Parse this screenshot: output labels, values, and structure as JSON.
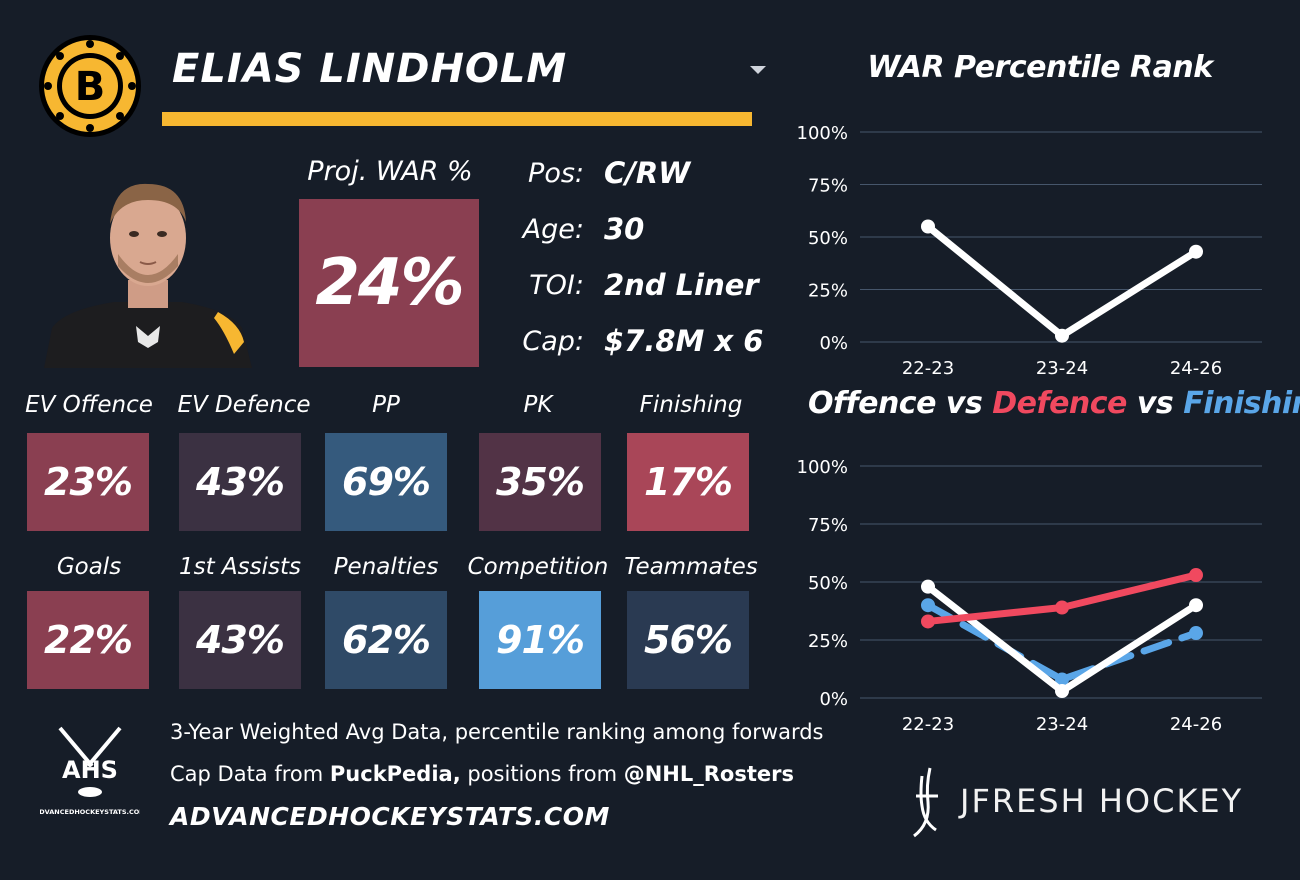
{
  "header": {
    "player_name": "ELIAS LINDHOLM",
    "team_logo_icon": "bruins-logo-icon",
    "accent": "#f7b731"
  },
  "proj_war": {
    "label": "Proj. WAR %",
    "value": "24%",
    "color": "#8a3f51"
  },
  "info": [
    {
      "label": "Pos:",
      "value": "C/RW"
    },
    {
      "label": "Age:",
      "value": "30"
    },
    {
      "label": "TOI:",
      "value": "2nd Liner"
    },
    {
      "label": "Cap:",
      "value": "$7.8M x 6"
    }
  ],
  "stats": [
    {
      "label": "EV Offence",
      "value": "23%",
      "color": "#8a3f51"
    },
    {
      "label": "EV Defence",
      "value": "43%",
      "color": "#3b3142"
    },
    {
      "label": "PP",
      "value": "69%",
      "color": "#355a7d"
    },
    {
      "label": "PK",
      "value": "35%",
      "color": "#523346"
    },
    {
      "label": "Finishing",
      "value": "17%",
      "color": "#a94658"
    },
    {
      "label": "Goals",
      "value": "22%",
      "color": "#8a3f51"
    },
    {
      "label": "1st Assists",
      "value": "43%",
      "color": "#3b3142"
    },
    {
      "label": "Penalties",
      "value": "62%",
      "color": "#2f4a67"
    },
    {
      "label": "Competition",
      "value": "91%",
      "color": "#569ed9"
    },
    {
      "label": "Teammates",
      "value": "56%",
      "color": "#2a3a52"
    }
  ],
  "chart_data": [
    {
      "type": "line",
      "title": "WAR Percentile Rank",
      "categories": [
        "22-23",
        "23-24",
        "24-26"
      ],
      "y_ticks": [
        "0%",
        "25%",
        "50%",
        "75%",
        "100%"
      ],
      "ylim": [
        0,
        100
      ],
      "grid": true,
      "series": [
        {
          "values": [
            55,
            3,
            43
          ],
          "color": "#ffffff",
          "dashed": false
        }
      ]
    },
    {
      "type": "line",
      "title": "Offence vs Defence vs Finishing",
      "title_parts": [
        "Offence",
        " vs ",
        "Defence",
        " vs ",
        "Finishing"
      ],
      "categories": [
        "22-23",
        "23-24",
        "24-26"
      ],
      "y_ticks": [
        "0%",
        "25%",
        "50%",
        "75%",
        "100%"
      ],
      "ylim": [
        0,
        100
      ],
      "grid": true,
      "series": [
        {
          "name": "Finishing",
          "values": [
            40,
            8,
            28
          ],
          "color": "#5aa6e8",
          "dashed": true
        },
        {
          "name": "Offence",
          "values": [
            48,
            3,
            40
          ],
          "color": "#ffffff",
          "dashed": false
        },
        {
          "name": "Defence",
          "values": [
            33,
            39,
            53
          ],
          "color": "#f0495f",
          "dashed": false
        }
      ]
    }
  ],
  "footer": {
    "line1": "3-Year Weighted Avg Data, percentile ranking among forwards",
    "line2_prefix": "Cap Data from ",
    "line2_source": "PuckPedia,",
    "line2_mid": " positions from ",
    "line2_handle": "@NHL_Rosters",
    "site": "ADVANCEDHOCKEYSTATS.COM",
    "ahs_logo_text": "AHS",
    "ahs_logo_sub": "ADVANCEDHOCKEYSTATS.COM",
    "brand": "JFRESH HOCKEY"
  }
}
